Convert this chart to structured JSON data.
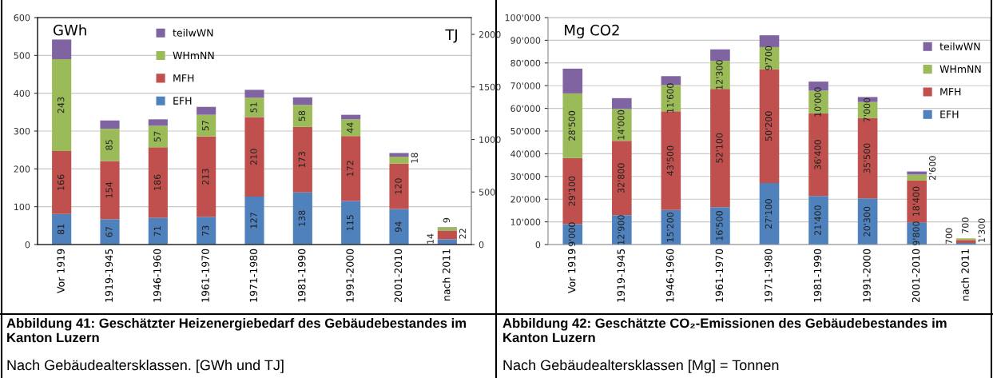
{
  "chart_data": [
    {
      "type": "bar",
      "stacked": true,
      "title": "Abbildung 41: Geschätzter Heizenergiebedarf des Gebäudebestandes im Kanton Luzern",
      "subtitle": "Nach Gebäudealtersklassen. [GWh und TJ]",
      "ylabel": "GWh",
      "y2label": "TJ",
      "categories": [
        "Vor 1919",
        "1919-1945",
        "1946-1960",
        "1961-1970",
        "1971-1980",
        "1981-1990",
        "1991-2000",
        "2001-2010",
        "nach 2011"
      ],
      "series": [
        {
          "name": "EFH",
          "color": "#4f81bd",
          "values": [
            81,
            67,
            71,
            73,
            127,
            138,
            115,
            94,
            14
          ],
          "value_labels": [
            "81",
            "67",
            "71",
            "73",
            "127",
            "138",
            "115",
            "94",
            "14"
          ]
        },
        {
          "name": "MFH",
          "color": "#c0504d",
          "values": [
            166,
            154,
            186,
            213,
            210,
            173,
            172,
            120,
            22
          ],
          "value_labels": [
            "166",
            "154",
            "186",
            "213",
            "210",
            "173",
            "172",
            "120",
            "22"
          ]
        },
        {
          "name": "WHmNN",
          "color": "#9bbb59",
          "values": [
            243,
            85,
            57,
            57,
            51,
            58,
            44,
            18,
            9
          ],
          "value_labels": [
            "243",
            "85",
            "57",
            "57",
            "51",
            "58",
            "44",
            "18",
            "9"
          ]
        },
        {
          "name": "teilwWN",
          "color": "#8064a2",
          "values": [
            52,
            22,
            17,
            21,
            21,
            20,
            12,
            10,
            1
          ]
        }
      ],
      "ylim": [
        0,
        600
      ],
      "yticks": [
        0,
        100,
        200,
        300,
        400,
        500,
        600
      ],
      "y2lim": [
        0,
        2160
      ],
      "y2ticks": [
        0,
        500,
        1000,
        1500,
        2000
      ],
      "grid": "y",
      "legend": "top"
    },
    {
      "type": "bar",
      "stacked": true,
      "title": "Abbildung 42: Geschätzte CO₂-Emissionen des Gebäudebestandes im Kanton Luzern",
      "subtitle": "Nach Gebäudealtersklassen [Mg] = Tonnen",
      "ylabel": "Mg CO2",
      "categories": [
        "Vor 1919",
        "1919-1945",
        "1946-1960",
        "1961-1970",
        "1971-1980",
        "1981-1990",
        "1991-2000",
        "2001-2010",
        "nach 2011"
      ],
      "series": [
        {
          "name": "EFH",
          "color": "#4f81bd",
          "values": [
            9000,
            12900,
            15200,
            16500,
            27100,
            21400,
            20300,
            9800,
            700
          ],
          "value_labels": [
            "9'000",
            "12'900",
            "15'200",
            "16'500",
            "27'100",
            "21'400",
            "20'300",
            "9'800",
            "700"
          ]
        },
        {
          "name": "MFH",
          "color": "#c0504d",
          "values": [
            29100,
            32800,
            43500,
            52100,
            50200,
            36400,
            35500,
            18400,
            1300
          ],
          "value_labels": [
            "29'100",
            "32'800",
            "43'500",
            "52'100",
            "50'200",
            "36'400",
            "35'500",
            "18'400",
            "1'300"
          ]
        },
        {
          "name": "WHmNN",
          "color": "#9bbb59",
          "values": [
            28500,
            14000,
            11600,
            12300,
            9700,
            10000,
            7000,
            2600,
            700
          ],
          "value_labels": [
            "28'500",
            "14'000",
            "11'600",
            "12'300",
            "9'700",
            "10'000",
            "7'000",
            "2'600",
            "700"
          ]
        },
        {
          "name": "teilwWN",
          "color": "#8064a2",
          "values": [
            10900,
            4800,
            3900,
            5100,
            5200,
            4000,
            2200,
            1400,
            null
          ]
        }
      ],
      "ylim": [
        0,
        100000
      ],
      "yticks": [
        0,
        {
          "value": 10000,
          "label": "10'000"
        },
        {
          "value": 20000,
          "label": "20'000"
        },
        {
          "value": 30000,
          "label": "30'000"
        },
        {
          "value": 40000,
          "label": "40'000"
        },
        {
          "value": 50000,
          "label": "50'000"
        },
        {
          "value": 60000,
          "label": "60'000"
        },
        {
          "value": 70000,
          "label": "70'000"
        },
        {
          "value": 80000,
          "label": "80'000"
        },
        {
          "value": 90000,
          "label": "90'000"
        },
        {
          "value": 100000,
          "label": "100'000"
        }
      ],
      "grid": "y",
      "legend": "top right"
    }
  ]
}
